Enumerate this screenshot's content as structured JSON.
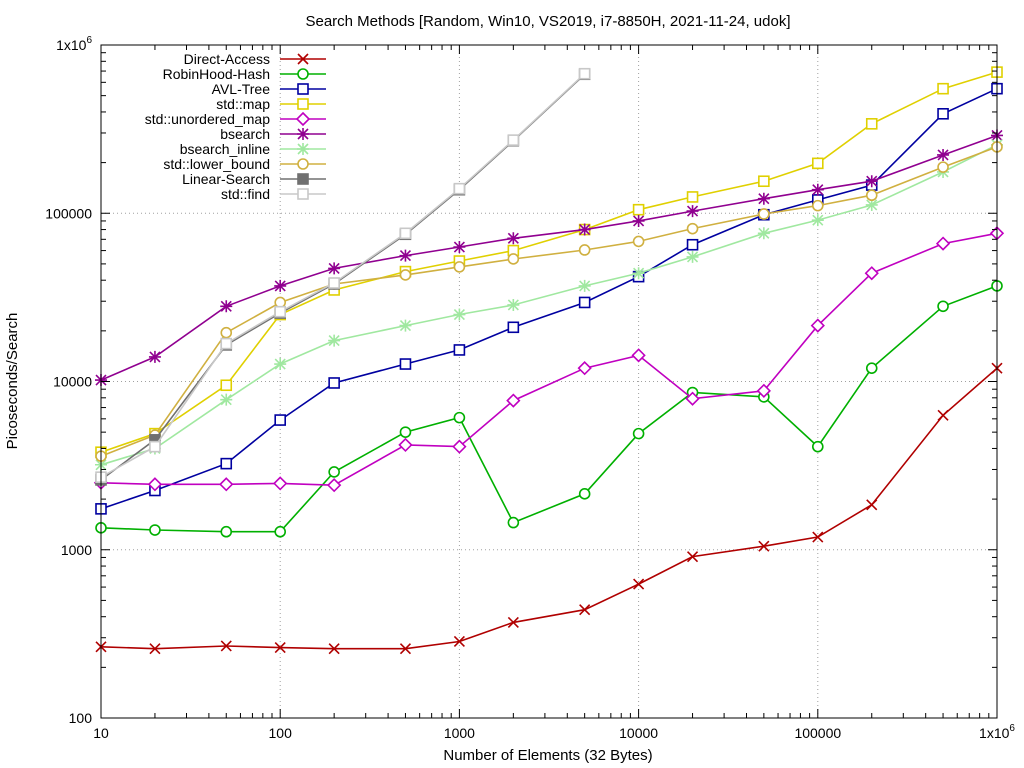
{
  "chart_data": {
    "type": "line",
    "title": "Search Methods [Random, Win10, VS2019, i7-8850H, 2021-11-24, udok]",
    "xlabel": "Number of Elements (32 Bytes)",
    "ylabel": "Picoseconds/Search",
    "xscale": "log",
    "yscale": "log",
    "xlim": [
      10,
      1000000
    ],
    "ylim": [
      100,
      1000000
    ],
    "grid": true,
    "legend_position": "top-left",
    "x_ticks": [
      {
        "value": 10,
        "label": "10"
      },
      {
        "value": 100,
        "label": "100"
      },
      {
        "value": 1000,
        "label": "1000"
      },
      {
        "value": 10000,
        "label": "10000"
      },
      {
        "value": 100000,
        "label": "100000"
      },
      {
        "value": 1000000,
        "label": "1x10",
        "sup": "6"
      }
    ],
    "y_ticks": [
      {
        "value": 100,
        "label": "100"
      },
      {
        "value": 1000,
        "label": "1000"
      },
      {
        "value": 10000,
        "label": "10000"
      },
      {
        "value": 100000,
        "label": "100000"
      },
      {
        "value": 1000000,
        "label": "1x10",
        "sup": "6"
      }
    ],
    "series": [
      {
        "name": "Direct-Access",
        "color": "#b00000",
        "marker": "x",
        "x": [
          10,
          20,
          50,
          100,
          200,
          500,
          1000,
          2000,
          5000,
          10000,
          20000,
          50000,
          100000,
          200000,
          500000,
          1000000
        ],
        "y": [
          265,
          258,
          268,
          262,
          258,
          258,
          285,
          370,
          440,
          625,
          910,
          1050,
          1190,
          1850,
          6300,
          12000
        ]
      },
      {
        "name": "RobinHood-Hash",
        "color": "#00b000",
        "marker": "circle",
        "x": [
          10,
          20,
          50,
          100,
          200,
          500,
          1000,
          2000,
          5000,
          10000,
          20000,
          50000,
          100000,
          200000,
          500000,
          1000000
        ],
        "y": [
          1350,
          1310,
          1280,
          1280,
          2900,
          5000,
          6100,
          1450,
          2150,
          4900,
          8600,
          8100,
          4100,
          12000,
          28000,
          37000
        ]
      },
      {
        "name": "AVL-Tree",
        "color": "#0000a0",
        "marker": "square",
        "x": [
          10,
          20,
          50,
          100,
          200,
          500,
          1000,
          2000,
          5000,
          10000,
          20000,
          50000,
          100000,
          200000,
          500000,
          1000000
        ],
        "y": [
          1750,
          2250,
          3250,
          5900,
          9800,
          12700,
          15400,
          21000,
          29500,
          42000,
          65000,
          98000,
          120000,
          147000,
          390000,
          550000
        ]
      },
      {
        "name": "std::map",
        "color": "#e0d000",
        "marker": "square",
        "x": [
          10,
          20,
          50,
          100,
          200,
          500,
          1000,
          2000,
          5000,
          10000,
          20000,
          50000,
          100000,
          200000,
          500000,
          1000000
        ],
        "y": [
          3800,
          4900,
          9500,
          25000,
          35000,
          45000,
          52000,
          60000,
          80000,
          105000,
          125000,
          155000,
          198000,
          340000,
          550000,
          690000
        ]
      },
      {
        "name": "std::unordered_map",
        "color": "#c000c0",
        "marker": "diamond",
        "x": [
          10,
          20,
          50,
          100,
          200,
          500,
          1000,
          2000,
          5000,
          10000,
          20000,
          50000,
          100000,
          200000,
          500000,
          1000000
        ],
        "y": [
          2500,
          2450,
          2450,
          2480,
          2420,
          4200,
          4100,
          7700,
          12000,
          14300,
          7900,
          8800,
          21500,
          44000,
          66000,
          76000
        ]
      },
      {
        "name": "bsearch",
        "color": "#900090",
        "marker": "star",
        "x": [
          10,
          20,
          50,
          100,
          200,
          500,
          1000,
          2000,
          5000,
          10000,
          20000,
          50000,
          100000,
          200000,
          500000,
          1000000
        ],
        "y": [
          10200,
          14000,
          28000,
          37000,
          47000,
          56000,
          63000,
          71000,
          80000,
          90000,
          103000,
          122000,
          138000,
          155000,
          222000,
          290000
        ]
      },
      {
        "name": "bsearch_inline",
        "color": "#a0e8a0",
        "marker": "star",
        "x": [
          10,
          20,
          50,
          100,
          200,
          500,
          1000,
          2000,
          5000,
          10000,
          20000,
          50000,
          100000,
          200000,
          500000,
          1000000
        ],
        "y": [
          3200,
          4000,
          7800,
          12700,
          17500,
          21500,
          25000,
          28500,
          37000,
          44000,
          55000,
          76000,
          91000,
          112000,
          176000,
          255000
        ]
      },
      {
        "name": "std::lower_bound",
        "color": "#d0b040",
        "marker": "circle",
        "x": [
          10,
          20,
          50,
          100,
          200,
          500,
          1000,
          2000,
          5000,
          10000,
          20000,
          50000,
          100000,
          200000,
          500000,
          1000000
        ],
        "y": [
          3600,
          4800,
          19500,
          29500,
          38000,
          43000,
          48000,
          53500,
          60500,
          68000,
          81000,
          99000,
          111000,
          128000,
          188000,
          248000
        ]
      },
      {
        "name": "Linear-Search",
        "color": "#707070",
        "marker": "filled-square",
        "x": [
          10,
          20,
          50,
          100,
          200,
          500,
          1000,
          2000,
          5000
        ],
        "y": [
          2600,
          4500,
          16500,
          25500,
          38000,
          75000,
          138000,
          270000,
          670000
        ]
      },
      {
        "name": "std::find",
        "color": "#c8c8c8",
        "marker": "square",
        "x": [
          10,
          20,
          50,
          100,
          200,
          500,
          1000,
          2000,
          5000
        ],
        "y": [
          2700,
          4100,
          16800,
          26000,
          38500,
          76000,
          140000,
          272000,
          675000
        ]
      }
    ]
  }
}
